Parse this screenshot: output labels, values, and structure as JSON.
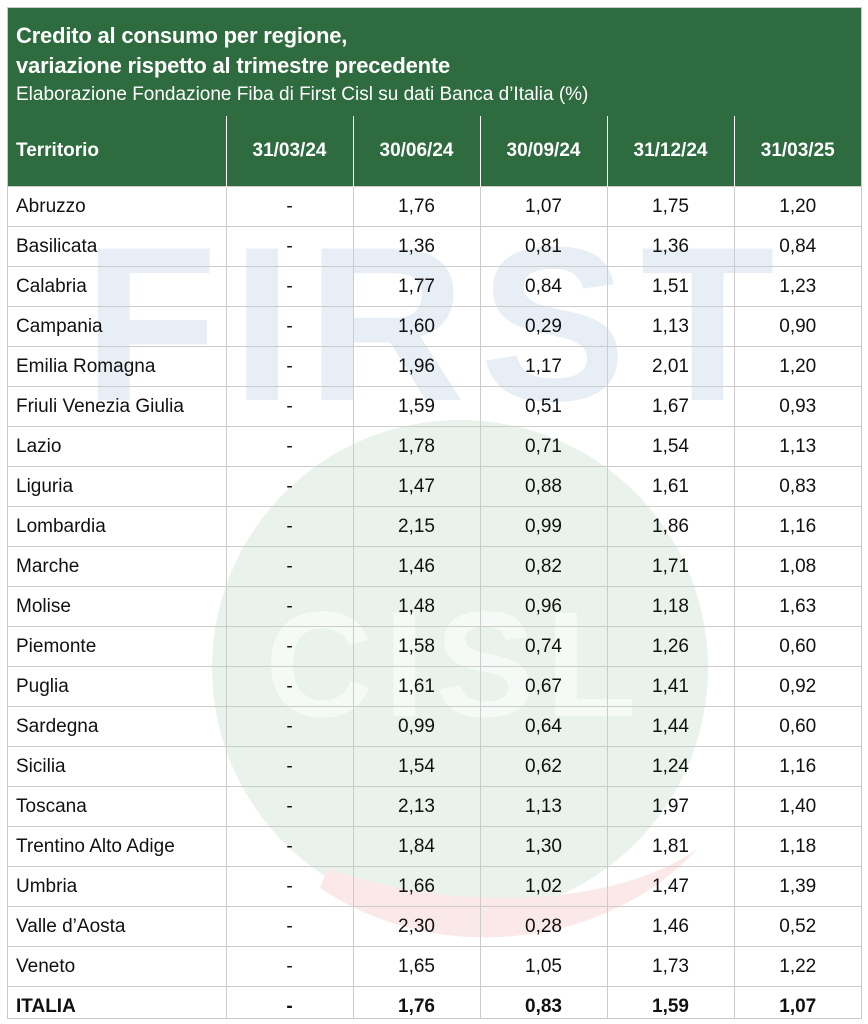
{
  "header": {
    "title_line1": "Credito al consumo per regione,",
    "title_line2": "variazione rispetto al trimestre precedente",
    "subtitle": "Elaborazione Fondazione Fiba di First Cisl su dati Banca d’Italia (%)"
  },
  "watermark": {
    "text_top": "FIRST",
    "text_bottom": "CISL",
    "colors": {
      "blue": "#e8eef6",
      "green": "#eaf2ec",
      "red": "#fbe9e9"
    }
  },
  "colors": {
    "header_bg": "#2e6b3e",
    "header_text": "#ffffff",
    "grid": "#cccccc"
  },
  "chart_data": {
    "type": "table",
    "columns": [
      "Territorio",
      "31/03/24",
      "30/06/24",
      "30/09/24",
      "31/12/24",
      "31/03/25"
    ],
    "rows": [
      [
        "Abruzzo",
        "-",
        "1,76",
        "1,07",
        "1,75",
        "1,20"
      ],
      [
        "Basilicata",
        "-",
        "1,36",
        "0,81",
        "1,36",
        "0,84"
      ],
      [
        "Calabria",
        "-",
        "1,77",
        "0,84",
        "1,51",
        "1,23"
      ],
      [
        "Campania",
        "-",
        "1,60",
        "0,29",
        "1,13",
        "0,90"
      ],
      [
        "Emilia Romagna",
        "-",
        "1,96",
        "1,17",
        "2,01",
        "1,20"
      ],
      [
        "Friuli Venezia Giulia",
        "-",
        "1,59",
        "0,51",
        "1,67",
        "0,93"
      ],
      [
        "Lazio",
        "-",
        "1,78",
        "0,71",
        "1,54",
        "1,13"
      ],
      [
        "Liguria",
        "-",
        "1,47",
        "0,88",
        "1,61",
        "0,83"
      ],
      [
        "Lombardia",
        "-",
        "2,15",
        "0,99",
        "1,86",
        "1,16"
      ],
      [
        "Marche",
        "-",
        "1,46",
        "0,82",
        "1,71",
        "1,08"
      ],
      [
        "Molise",
        "-",
        "1,48",
        "0,96",
        "1,18",
        "1,63"
      ],
      [
        "Piemonte",
        "-",
        "1,58",
        "0,74",
        "1,26",
        "0,60"
      ],
      [
        "Puglia",
        "-",
        "1,61",
        "0,67",
        "1,41",
        "0,92"
      ],
      [
        "Sardegna",
        "-",
        "0,99",
        "0,64",
        "1,44",
        "0,60"
      ],
      [
        "Sicilia",
        "-",
        "1,54",
        "0,62",
        "1,24",
        "1,16"
      ],
      [
        "Toscana",
        "-",
        "2,13",
        "1,13",
        "1,97",
        "1,40"
      ],
      [
        "Trentino Alto Adige",
        "-",
        "1,84",
        "1,30",
        "1,81",
        "1,18"
      ],
      [
        "Umbria",
        "-",
        "1,66",
        "1,02",
        "1,47",
        "1,39"
      ],
      [
        "Valle d’Aosta",
        "-",
        "2,30",
        "0,28",
        "1,46",
        "0,52"
      ],
      [
        "Veneto",
        "-",
        "1,65",
        "1,05",
        "1,73",
        "1,22"
      ]
    ],
    "total": [
      "ITALIA",
      "-",
      "1,76",
      "0,83",
      "1,59",
      "1,07"
    ]
  }
}
